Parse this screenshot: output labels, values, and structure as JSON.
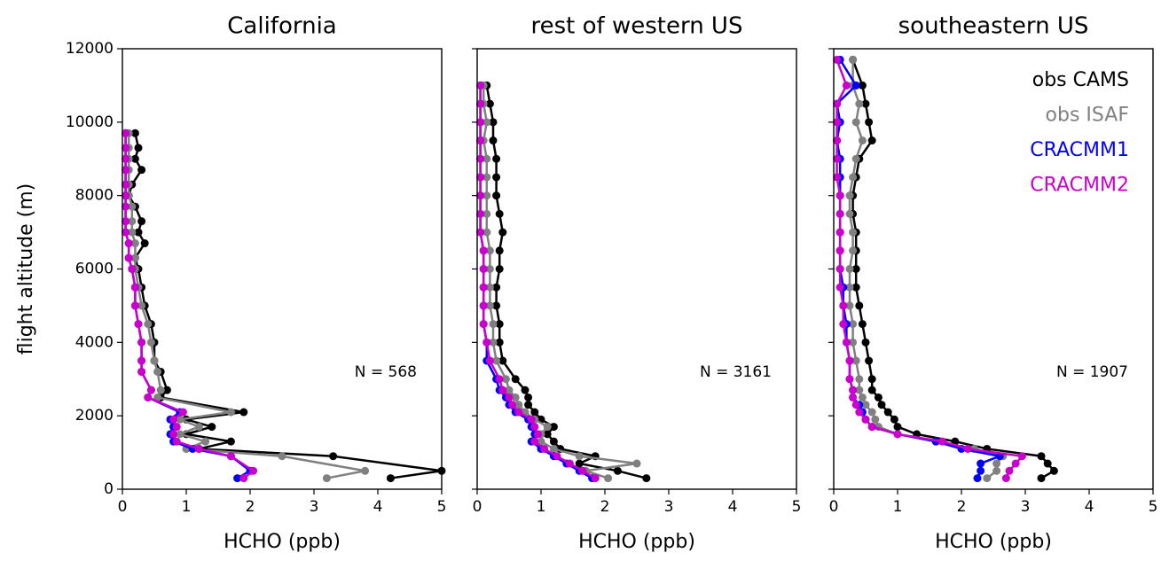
{
  "chart_data": [
    {
      "type": "line",
      "title": "California",
      "xlabel": "HCHO (ppb)",
      "ylabel": "flight altitude (m)",
      "annotation": "N = 568",
      "xlim": [
        0,
        5
      ],
      "xticks": [
        0,
        1,
        2,
        3,
        4,
        5
      ],
      "ylim": [
        0,
        12000
      ],
      "yticks": [
        0,
        2000,
        4000,
        6000,
        8000,
        10000,
        12000
      ],
      "y": [
        300,
        500,
        900,
        1100,
        1300,
        1500,
        1700,
        1900,
        2100,
        2500,
        2700,
        3200,
        3500,
        4000,
        4500,
        5000,
        5500,
        6000,
        6300,
        6700,
        7000,
        7300,
        7700,
        8000,
        8300,
        8700,
        9000,
        9300,
        9700
      ],
      "series": [
        {
          "color": "#000000",
          "values": [
            4.2,
            5.0,
            3.3,
            1.2,
            1.7,
            1.0,
            1.4,
            1.0,
            1.9,
            0.6,
            0.7,
            0.6,
            0.5,
            0.5,
            0.45,
            0.35,
            0.3,
            0.25,
            0.2,
            0.35,
            0.25,
            0.3,
            0.2,
            0.1,
            0.15,
            0.3,
            0.2,
            0.25,
            0.2
          ]
        },
        {
          "color": "#808080",
          "values": [
            3.2,
            3.8,
            2.5,
            1.0,
            1.3,
            0.9,
            1.2,
            0.9,
            1.7,
            0.55,
            0.6,
            0.55,
            0.5,
            0.45,
            0.4,
            0.3,
            0.25,
            0.2,
            0.2,
            0.2,
            0.15,
            0.15,
            0.15,
            0.1,
            0.1,
            0.1,
            0.1,
            0.1,
            0.1
          ]
        },
        {
          "color": "#0000ff",
          "values": [
            1.8,
            2.0,
            1.7,
            1.1,
            0.8,
            0.75,
            0.8,
            0.75,
            0.9,
            0.4,
            0.45,
            0.3,
            0.3,
            0.3,
            0.25,
            0.2,
            0.2,
            0.15,
            0.1,
            0.1,
            0.05,
            0.05,
            0.05,
            0.05,
            0.05,
            0.05,
            0.05,
            0.05,
            0.05
          ]
        },
        {
          "color": "#cc00cc",
          "values": [
            1.9,
            2.05,
            1.7,
            1.2,
            0.85,
            0.8,
            0.85,
            0.8,
            0.95,
            0.4,
            0.45,
            0.3,
            0.3,
            0.3,
            0.25,
            0.2,
            0.2,
            0.15,
            0.1,
            0.1,
            0.05,
            0.05,
            0.05,
            0.05,
            0.05,
            0.05,
            0.05,
            0.05,
            0.05
          ]
        }
      ]
    },
    {
      "type": "line",
      "title": "rest of western US",
      "xlabel": "HCHO (ppb)",
      "annotation": "N = 3161",
      "xlim": [
        0,
        5
      ],
      "xticks": [
        0,
        1,
        2,
        3,
        4,
        5
      ],
      "ylim": [
        0,
        12000
      ],
      "y": [
        300,
        500,
        700,
        900,
        1100,
        1300,
        1500,
        1700,
        1900,
        2100,
        2300,
        2500,
        2700,
        3000,
        3500,
        4000,
        4500,
        5000,
        5500,
        6000,
        6500,
        7000,
        7500,
        8000,
        8500,
        9000,
        9500,
        10000,
        10500,
        11000
      ],
      "series": [
        {
          "color": "#000000",
          "values": [
            2.65,
            2.2,
            1.6,
            1.85,
            1.3,
            1.2,
            1.1,
            1.2,
            1.0,
            0.9,
            0.8,
            0.8,
            0.75,
            0.6,
            0.4,
            0.35,
            0.35,
            0.3,
            0.3,
            0.35,
            0.35,
            0.4,
            0.35,
            0.3,
            0.3,
            0.3,
            0.25,
            0.25,
            0.2,
            0.15
          ]
        },
        {
          "color": "#808080",
          "values": [
            2.05,
            1.7,
            2.5,
            1.6,
            1.2,
            1.0,
            1.0,
            1.1,
            0.9,
            0.75,
            0.65,
            0.6,
            0.5,
            0.45,
            0.3,
            0.25,
            0.25,
            0.2,
            0.2,
            0.2,
            0.2,
            0.15,
            0.15,
            0.15,
            0.15,
            0.15,
            0.1,
            0.15,
            0.1,
            0.1
          ]
        },
        {
          "color": "#0000ff",
          "values": [
            1.8,
            1.6,
            1.4,
            1.2,
            1.0,
            0.85,
            0.9,
            0.85,
            0.8,
            0.6,
            0.5,
            0.45,
            0.35,
            0.3,
            0.15,
            0.15,
            0.1,
            0.1,
            0.1,
            0.1,
            0.1,
            0.05,
            0.05,
            0.05,
            0.05,
            0.05,
            0.05,
            0.05,
            0.05,
            0.05
          ]
        },
        {
          "color": "#cc00cc",
          "values": [
            1.85,
            1.65,
            1.45,
            1.25,
            1.05,
            0.9,
            0.95,
            0.9,
            0.85,
            0.65,
            0.55,
            0.5,
            0.4,
            0.35,
            0.2,
            0.15,
            0.1,
            0.1,
            0.1,
            0.1,
            0.1,
            0.05,
            0.05,
            0.05,
            0.05,
            0.05,
            0.05,
            0.05,
            0.05,
            0.05
          ]
        }
      ]
    },
    {
      "type": "line",
      "title": "southeastern US",
      "xlabel": "HCHO (ppb)",
      "annotation": "N = 1907",
      "legend": "upper right",
      "xlim": [
        0,
        5
      ],
      "xticks": [
        0,
        1,
        2,
        3,
        4,
        5
      ],
      "ylim": [
        0,
        12000
      ],
      "y": [
        300,
        500,
        700,
        900,
        1100,
        1300,
        1500,
        1700,
        1900,
        2100,
        2300,
        2500,
        2700,
        3000,
        3500,
        4000,
        4500,
        5000,
        5500,
        6000,
        6500,
        7000,
        7500,
        8000,
        8500,
        9000,
        9500,
        10000,
        10500,
        11000,
        11700
      ],
      "series": [
        {
          "name": "obs CAMS",
          "color": "#000000",
          "values": [
            3.25,
            3.45,
            3.35,
            3.25,
            2.4,
            1.9,
            1.3,
            1.0,
            0.95,
            0.85,
            0.75,
            0.7,
            0.6,
            0.6,
            0.55,
            0.5,
            0.45,
            0.4,
            0.35,
            0.35,
            0.35,
            0.35,
            0.3,
            0.3,
            0.35,
            0.4,
            0.6,
            0.55,
            0.5,
            0.45,
            0.3
          ]
        },
        {
          "name": "obs ISAF",
          "color": "#808080",
          "values": [
            2.4,
            2.55,
            2.55,
            2.65,
            2.2,
            1.6,
            1.0,
            0.7,
            0.65,
            0.6,
            0.5,
            0.45,
            0.4,
            0.4,
            0.35,
            0.3,
            0.3,
            0.25,
            0.25,
            0.25,
            0.3,
            0.3,
            0.25,
            0.25,
            0.3,
            0.35,
            0.45,
            0.35,
            0.4,
            0.3,
            0.3
          ]
        },
        {
          "name": "CRACMM1",
          "color": "#0000ff",
          "values": [
            2.25,
            2.3,
            2.3,
            2.6,
            2.0,
            1.6,
            1.0,
            0.6,
            0.5,
            0.45,
            0.4,
            0.3,
            0.3,
            0.25,
            0.25,
            0.2,
            0.2,
            0.15,
            0.15,
            0.1,
            0.1,
            0.1,
            0.1,
            0.1,
            0.1,
            0.1,
            0.05,
            0.1,
            0.05,
            0.35,
            0.1
          ]
        },
        {
          "name": "CRACMM2",
          "color": "#cc00cc",
          "values": [
            2.7,
            2.75,
            2.85,
            2.95,
            2.1,
            1.7,
            1.0,
            0.6,
            0.5,
            0.4,
            0.35,
            0.3,
            0.3,
            0.25,
            0.25,
            0.2,
            0.15,
            0.15,
            0.1,
            0.1,
            0.1,
            0.1,
            0.1,
            0.1,
            0.05,
            0.05,
            0.05,
            0.05,
            0.05,
            0.2,
            0.05
          ]
        }
      ]
    }
  ]
}
